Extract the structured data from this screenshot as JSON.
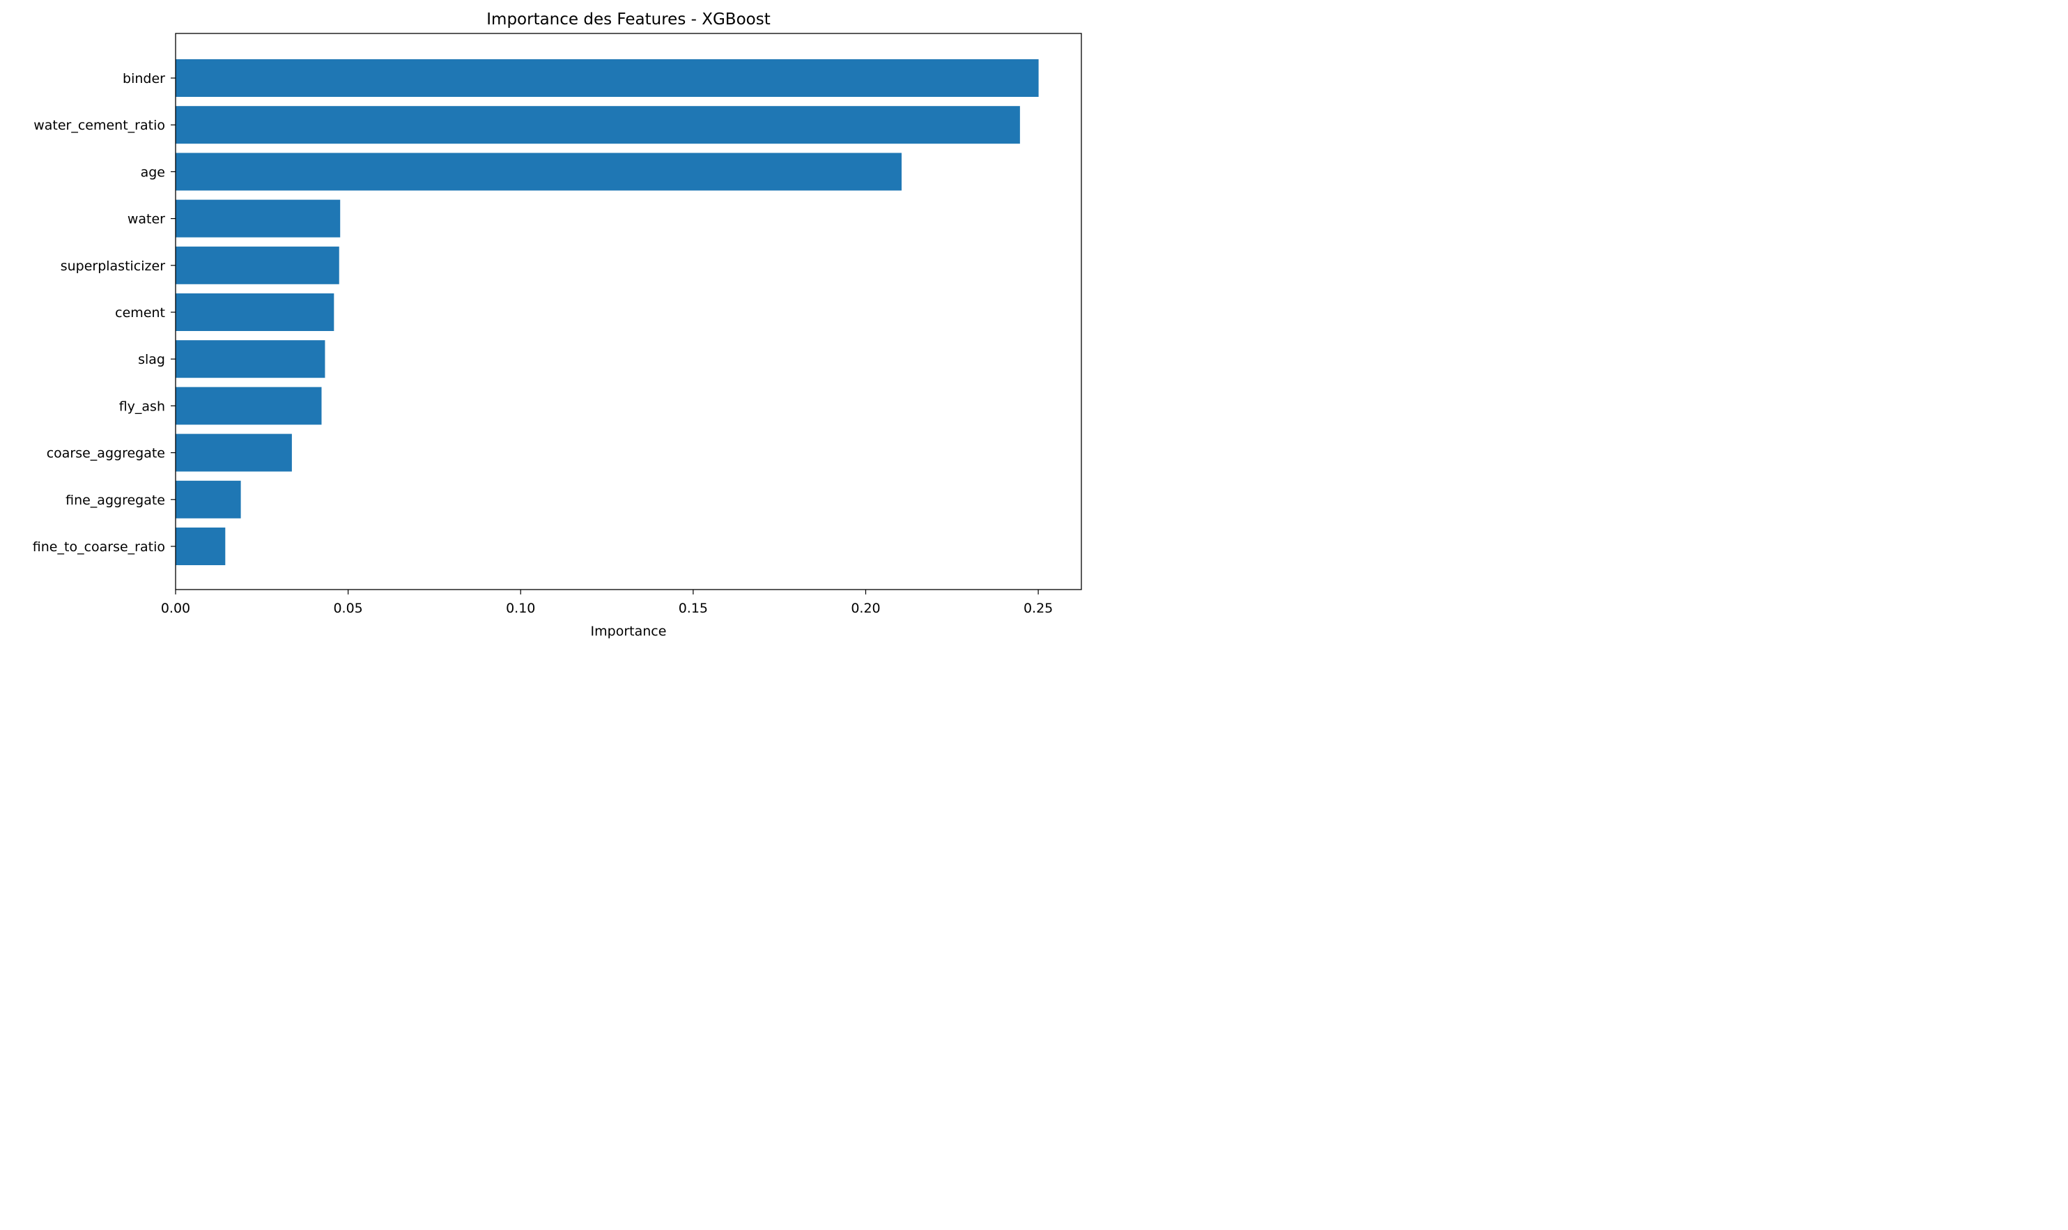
{
  "chart_data": {
    "type": "bar",
    "orientation": "horizontal",
    "title": "Importance des Features - XGBoost",
    "xlabel": "Importance",
    "ylabel": "",
    "xlim": [
      0,
      0.2625
    ],
    "xticks": [
      0.0,
      0.05,
      0.1,
      0.15,
      0.2,
      0.25
    ],
    "xtick_labels": [
      "0.00",
      "0.05",
      "0.10",
      "0.15",
      "0.20",
      "0.25"
    ],
    "grid": false,
    "legend": "none",
    "bar_color": "#1f77b4",
    "categories": [
      "binder",
      "water_cement_ratio",
      "age",
      "water",
      "superplasticizer",
      "cement",
      "slag",
      "fly_ash",
      "coarse_aggregate",
      "fine_aggregate",
      "fine_to_coarse_ratio"
    ],
    "values": [
      0.2501,
      0.2447,
      0.2104,
      0.0477,
      0.0474,
      0.0459,
      0.0433,
      0.0423,
      0.0337,
      0.0189,
      0.0144
    ]
  }
}
